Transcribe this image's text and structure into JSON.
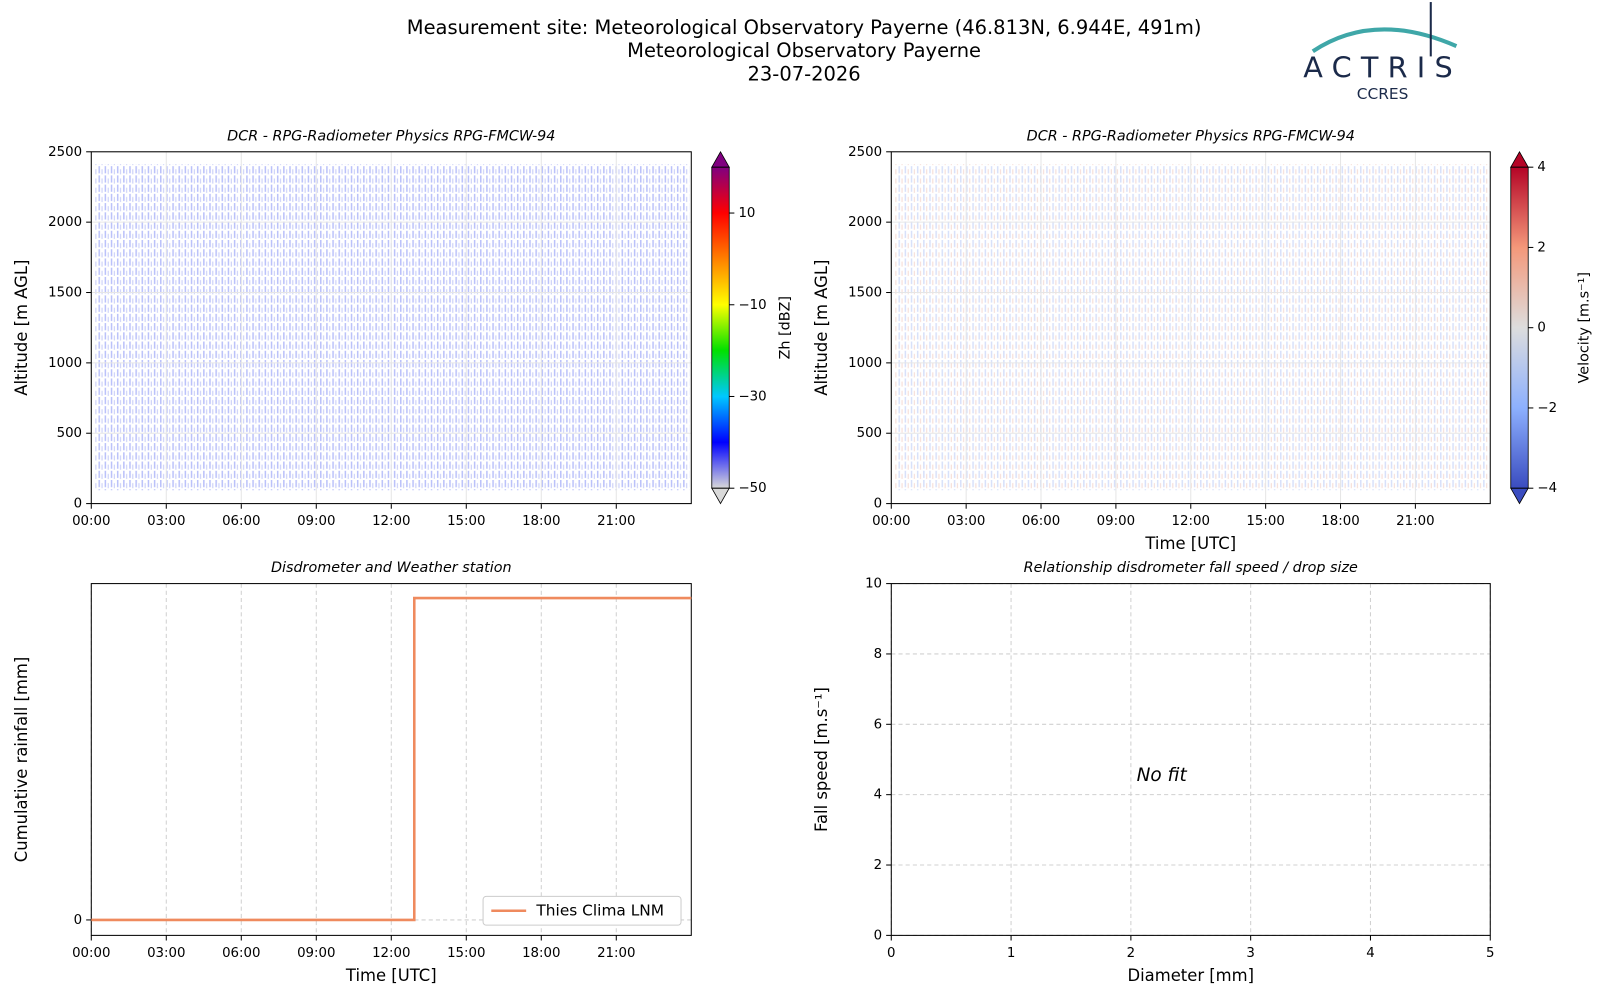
{
  "header": {
    "lines": [
      "Measurement site: Meteorological Observatory Payerne (46.813N, 6.944E, 491m)",
      "Meteorological Observatory Payerne",
      "23-07-2026"
    ],
    "logo": "ACTRIS",
    "logo_sub": "CCRES"
  },
  "chart_data": [
    {
      "type": "heatmap",
      "title": "DCR - RPG-Radiometer Physics RPG-FMCW-94",
      "ylabel": "Altitude [m AGL]",
      "xlim": [
        0,
        24
      ],
      "xticks": [
        {
          "value": 0,
          "label": "00:00"
        },
        {
          "value": 3,
          "label": "03:00"
        },
        {
          "value": 6,
          "label": "06:00"
        },
        {
          "value": 9,
          "label": "09:00"
        },
        {
          "value": 12,
          "label": "12:00"
        },
        {
          "value": 15,
          "label": "15:00"
        },
        {
          "value": 18,
          "label": "18:00"
        },
        {
          "value": 21,
          "label": "21:00"
        }
      ],
      "ylim": [
        0,
        2500
      ],
      "yticks": [
        0,
        500,
        1000,
        1500,
        2000,
        2500
      ],
      "grid": true,
      "colorbar_label": "Zh [dBZ]",
      "clim": [
        -50,
        20
      ],
      "cticks": [
        {
          "value": -50,
          "label": "−50"
        },
        {
          "value": -30,
          "label": "−30"
        },
        {
          "value": -10,
          "label": "−10"
        },
        10
      ],
      "colormap": [
        "#d9d9d9",
        "#0000ff",
        "#00c8ff",
        "#00e000",
        "#ffff00",
        "#ff8000",
        "#ff0000",
        "#800080"
      ]
    },
    {
      "type": "heatmap",
      "title": "DCR - RPG-Radiometer Physics RPG-FMCW-94",
      "xlabel": "Time [UTC]",
      "ylabel": "Altitude [m AGL]",
      "xlim": [
        0,
        24
      ],
      "xticks": [
        {
          "value": 0,
          "label": "00:00"
        },
        {
          "value": 3,
          "label": "03:00"
        },
        {
          "value": 6,
          "label": "06:00"
        },
        {
          "value": 9,
          "label": "09:00"
        },
        {
          "value": 12,
          "label": "12:00"
        },
        {
          "value": 15,
          "label": "15:00"
        },
        {
          "value": 18,
          "label": "18:00"
        },
        {
          "value": 21,
          "label": "21:00"
        }
      ],
      "ylim": [
        0,
        2500
      ],
      "yticks": [
        0,
        500,
        1000,
        1500,
        2000,
        2500
      ],
      "grid": true,
      "colorbar_label": "Velocity [m.s⁻¹]",
      "clim": [
        -4,
        4
      ],
      "cticks": [
        {
          "value": -4,
          "label": "−4"
        },
        {
          "value": -2,
          "label": "−2"
        },
        0,
        2,
        4
      ],
      "colormap": [
        "#3a4cc0",
        "#8db0fe",
        "#dddddd",
        "#f4987a",
        "#b40426"
      ]
    },
    {
      "type": "line",
      "title": "Disdrometer and Weather station",
      "xlabel": "Time [UTC]",
      "ylabel": "Cumulative rainfall [mm]",
      "xlim": [
        0,
        24
      ],
      "xticks": [
        {
          "value": 0,
          "label": "00:00"
        },
        {
          "value": 3,
          "label": "03:00"
        },
        {
          "value": 6,
          "label": "06:00"
        },
        {
          "value": 9,
          "label": "09:00"
        },
        {
          "value": 12,
          "label": "12:00"
        },
        {
          "value": 15,
          "label": "15:00"
        },
        {
          "value": 18,
          "label": "18:00"
        },
        {
          "value": 21,
          "label": "21:00"
        }
      ],
      "ylim": [
        -0.048,
        1.045
      ],
      "yticks": [
        0
      ],
      "grid": true,
      "legend": "lower right",
      "x": [
        0,
        12.92,
        12.92,
        24
      ],
      "series": [
        {
          "name": "Thies Clima LNM",
          "color": "#ef8a5e",
          "values": [
            0,
            0,
            1,
            1
          ]
        }
      ]
    },
    {
      "type": "scatter",
      "title": "Relationship disdrometer fall speed / drop size",
      "xlabel": "Diameter [mm]",
      "ylabel": "Fall speed [m.s⁻¹]",
      "xlim": [
        0,
        5
      ],
      "xticks": [
        0,
        1,
        2,
        3,
        4,
        5
      ],
      "ylim": [
        0,
        10
      ],
      "yticks": [
        0,
        2,
        4,
        6,
        8,
        10
      ],
      "grid": true,
      "annotation": "No fit"
    }
  ]
}
